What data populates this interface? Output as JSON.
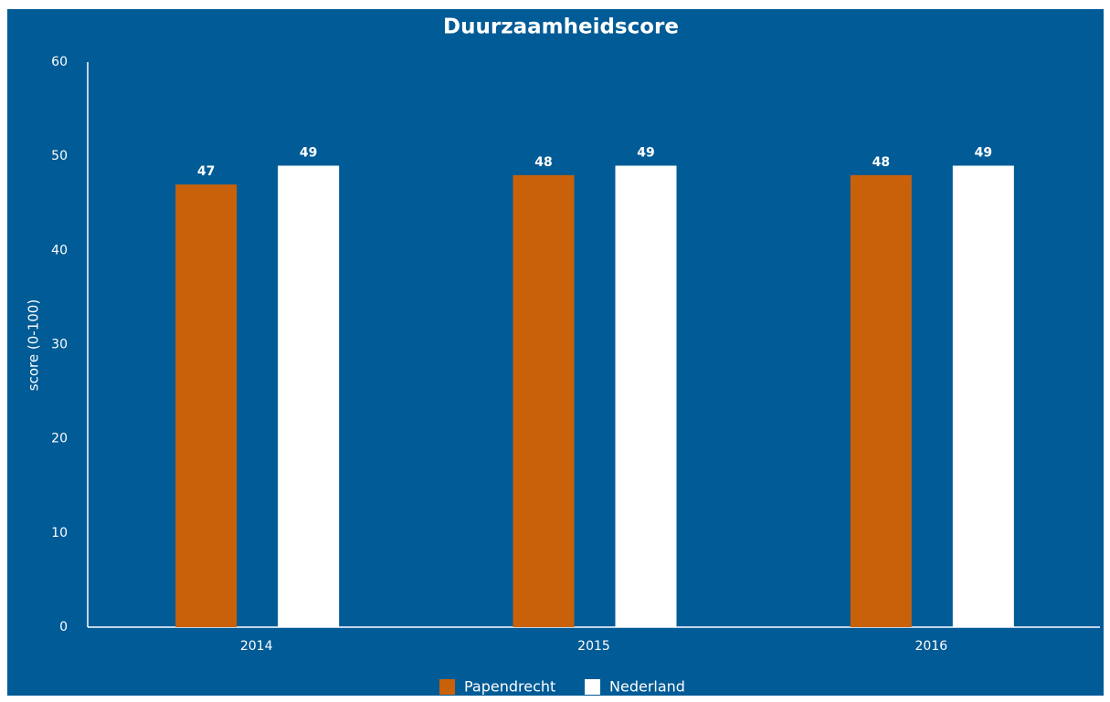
{
  "chart_data": {
    "type": "bar",
    "title": "Duurzaamheidscore",
    "y_label": "score (0-100)",
    "categories": [
      "2014",
      "2015",
      "2016"
    ],
    "series": [
      {
        "name": "Papendrecht",
        "color": "#c9610a",
        "values": [
          47,
          48,
          48
        ]
      },
      {
        "name": "Nederland",
        "color": "#ffffff",
        "values": [
          49,
          49,
          49
        ]
      }
    ],
    "ylim": [
      0,
      60
    ],
    "yticks": [
      0,
      10,
      20,
      30,
      40,
      50,
      60
    ],
    "grid": false,
    "legend": "bottom",
    "background": "#005b96"
  }
}
